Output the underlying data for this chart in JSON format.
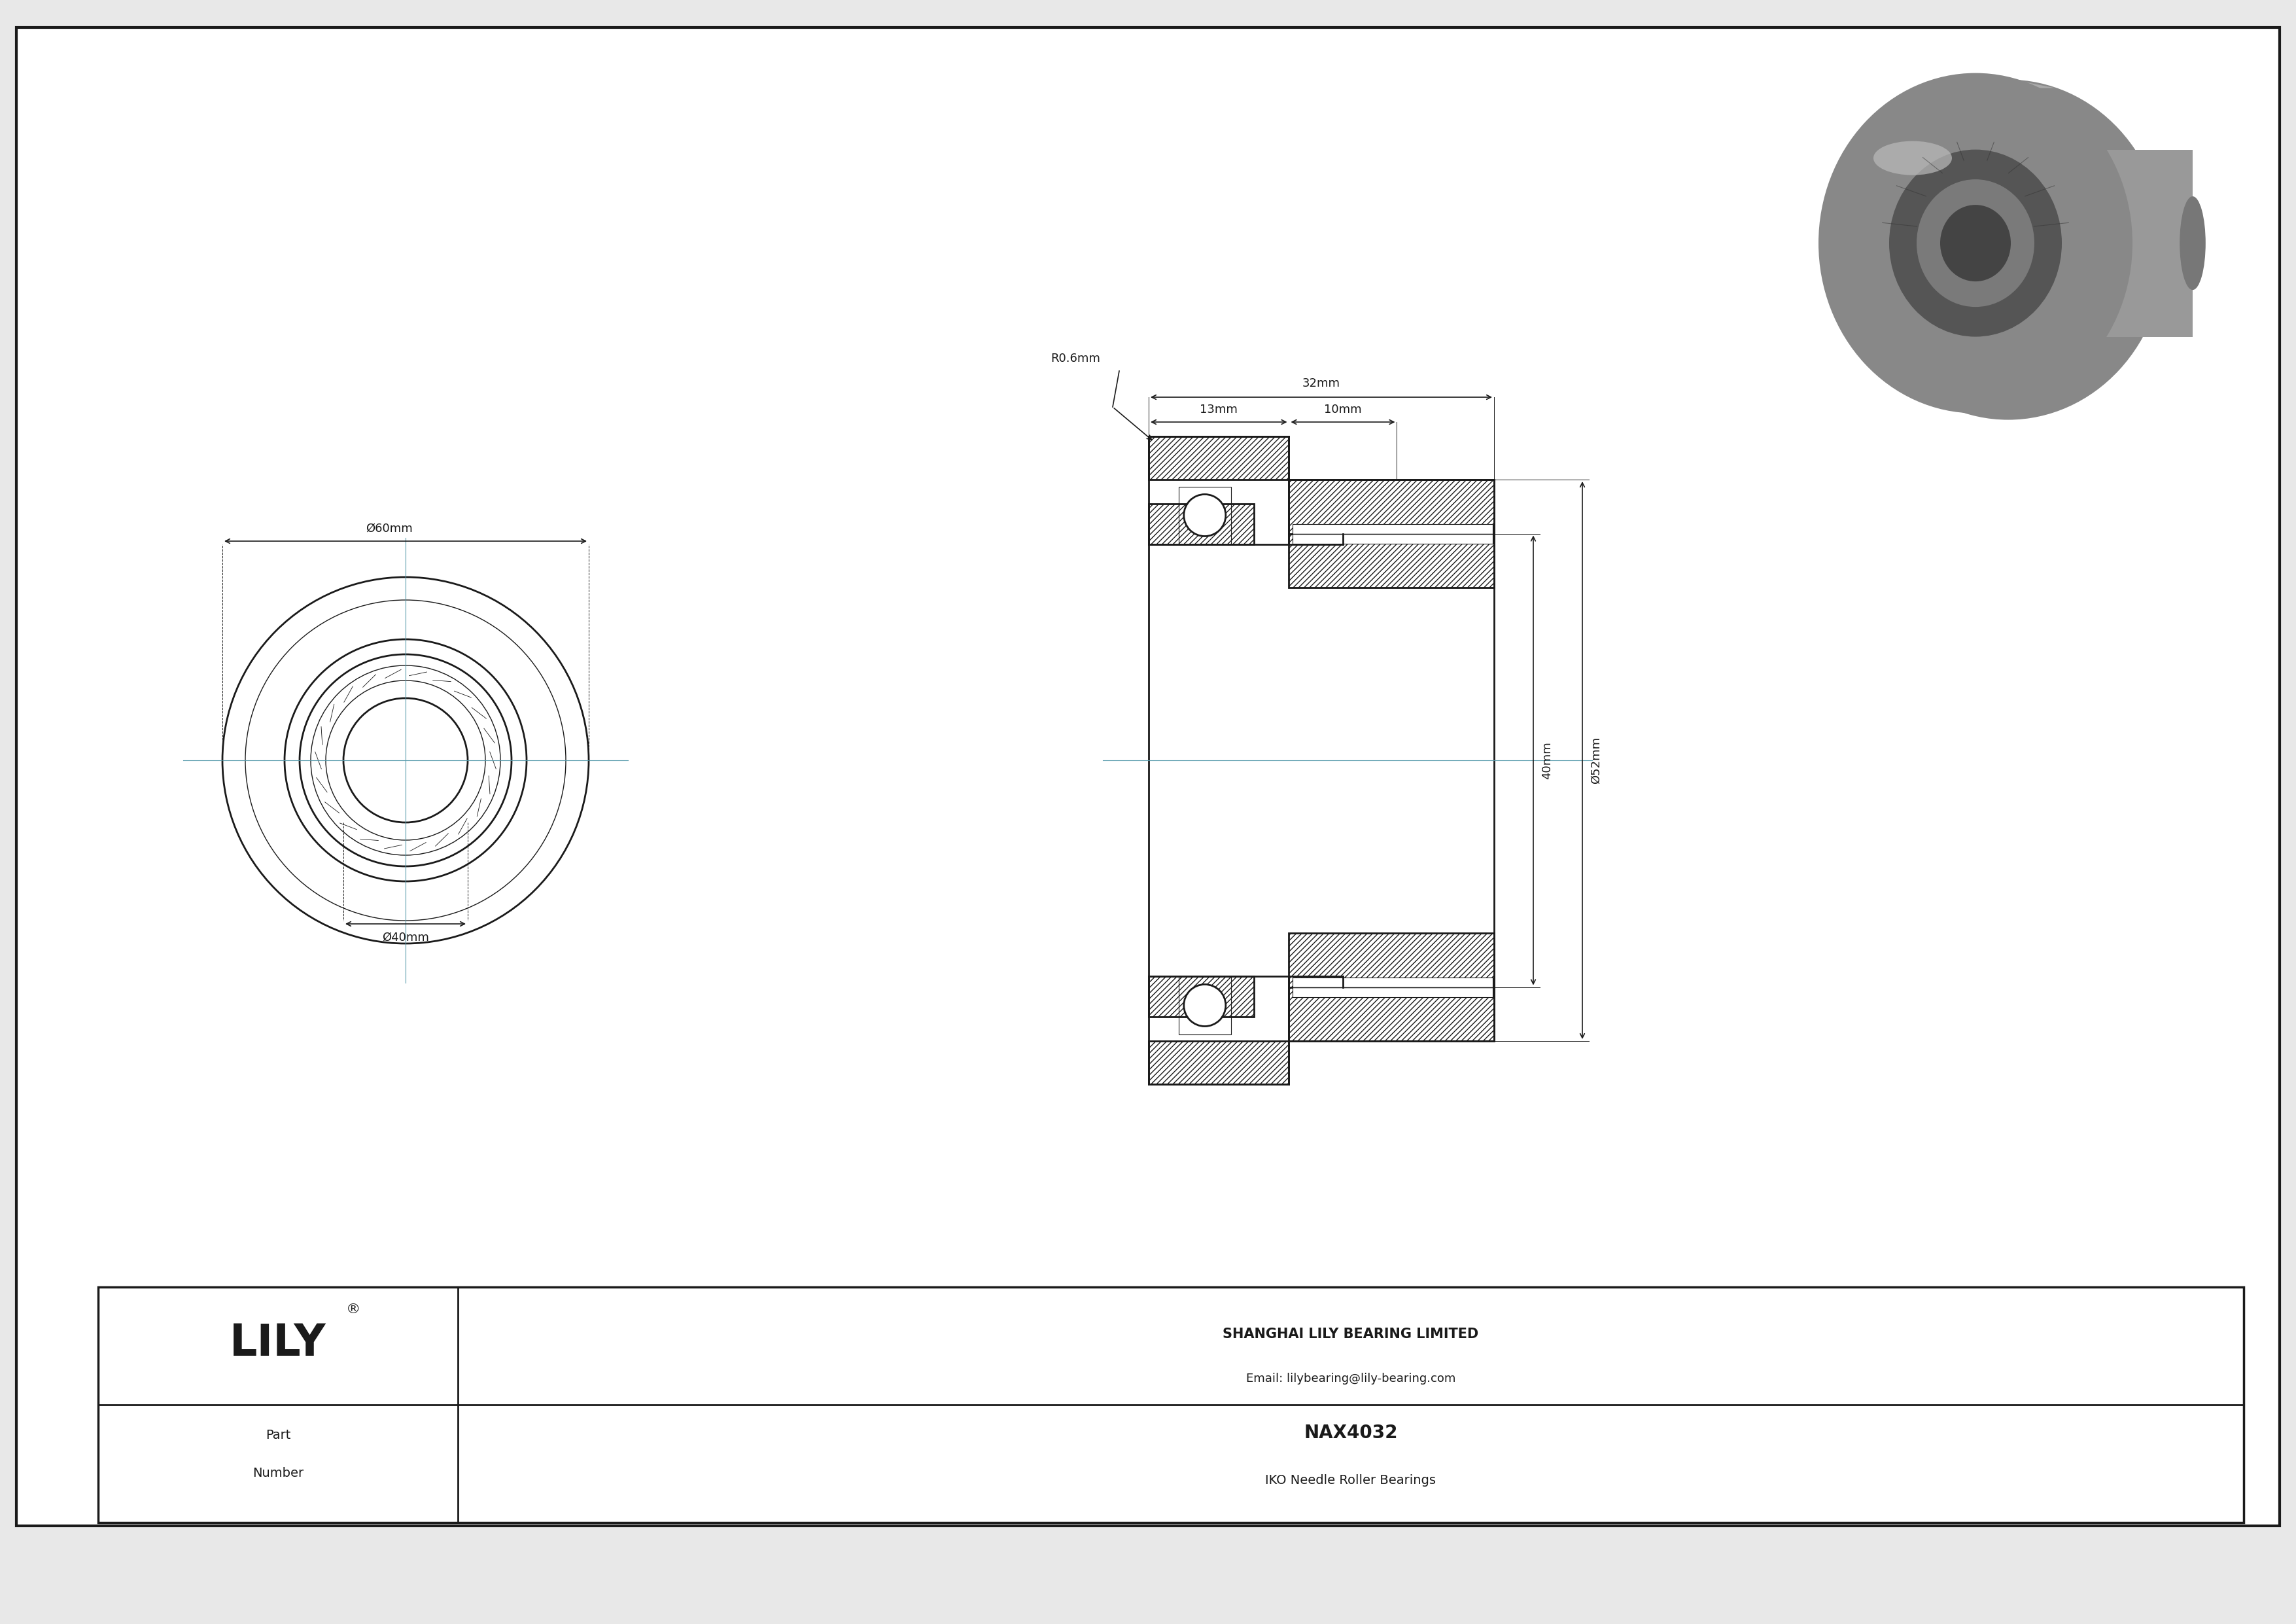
{
  "bg_color": "#e8e8e8",
  "drawing_bg": "#ffffff",
  "line_color": "#1a1a1a",
  "title_company": "SHANGHAI LILY BEARING LIMITED",
  "title_email": "Email: lilybearing@lily-bearing.com",
  "part_label": "Part\nNumber",
  "part_number": "NAX4032",
  "part_type": "IKO Needle Roller Bearings",
  "lily_text": "LILY",
  "dim_d60": "Ø60mm",
  "dim_d40": "Ø40mm",
  "dim_32mm": "32mm",
  "dim_13mm": "13mm",
  "dim_10mm": "10mm",
  "dim_40mm": "40mm",
  "dim_d52mm": "Ø52mm",
  "dim_r06mm": "R0.6mm",
  "scale": 0.165
}
